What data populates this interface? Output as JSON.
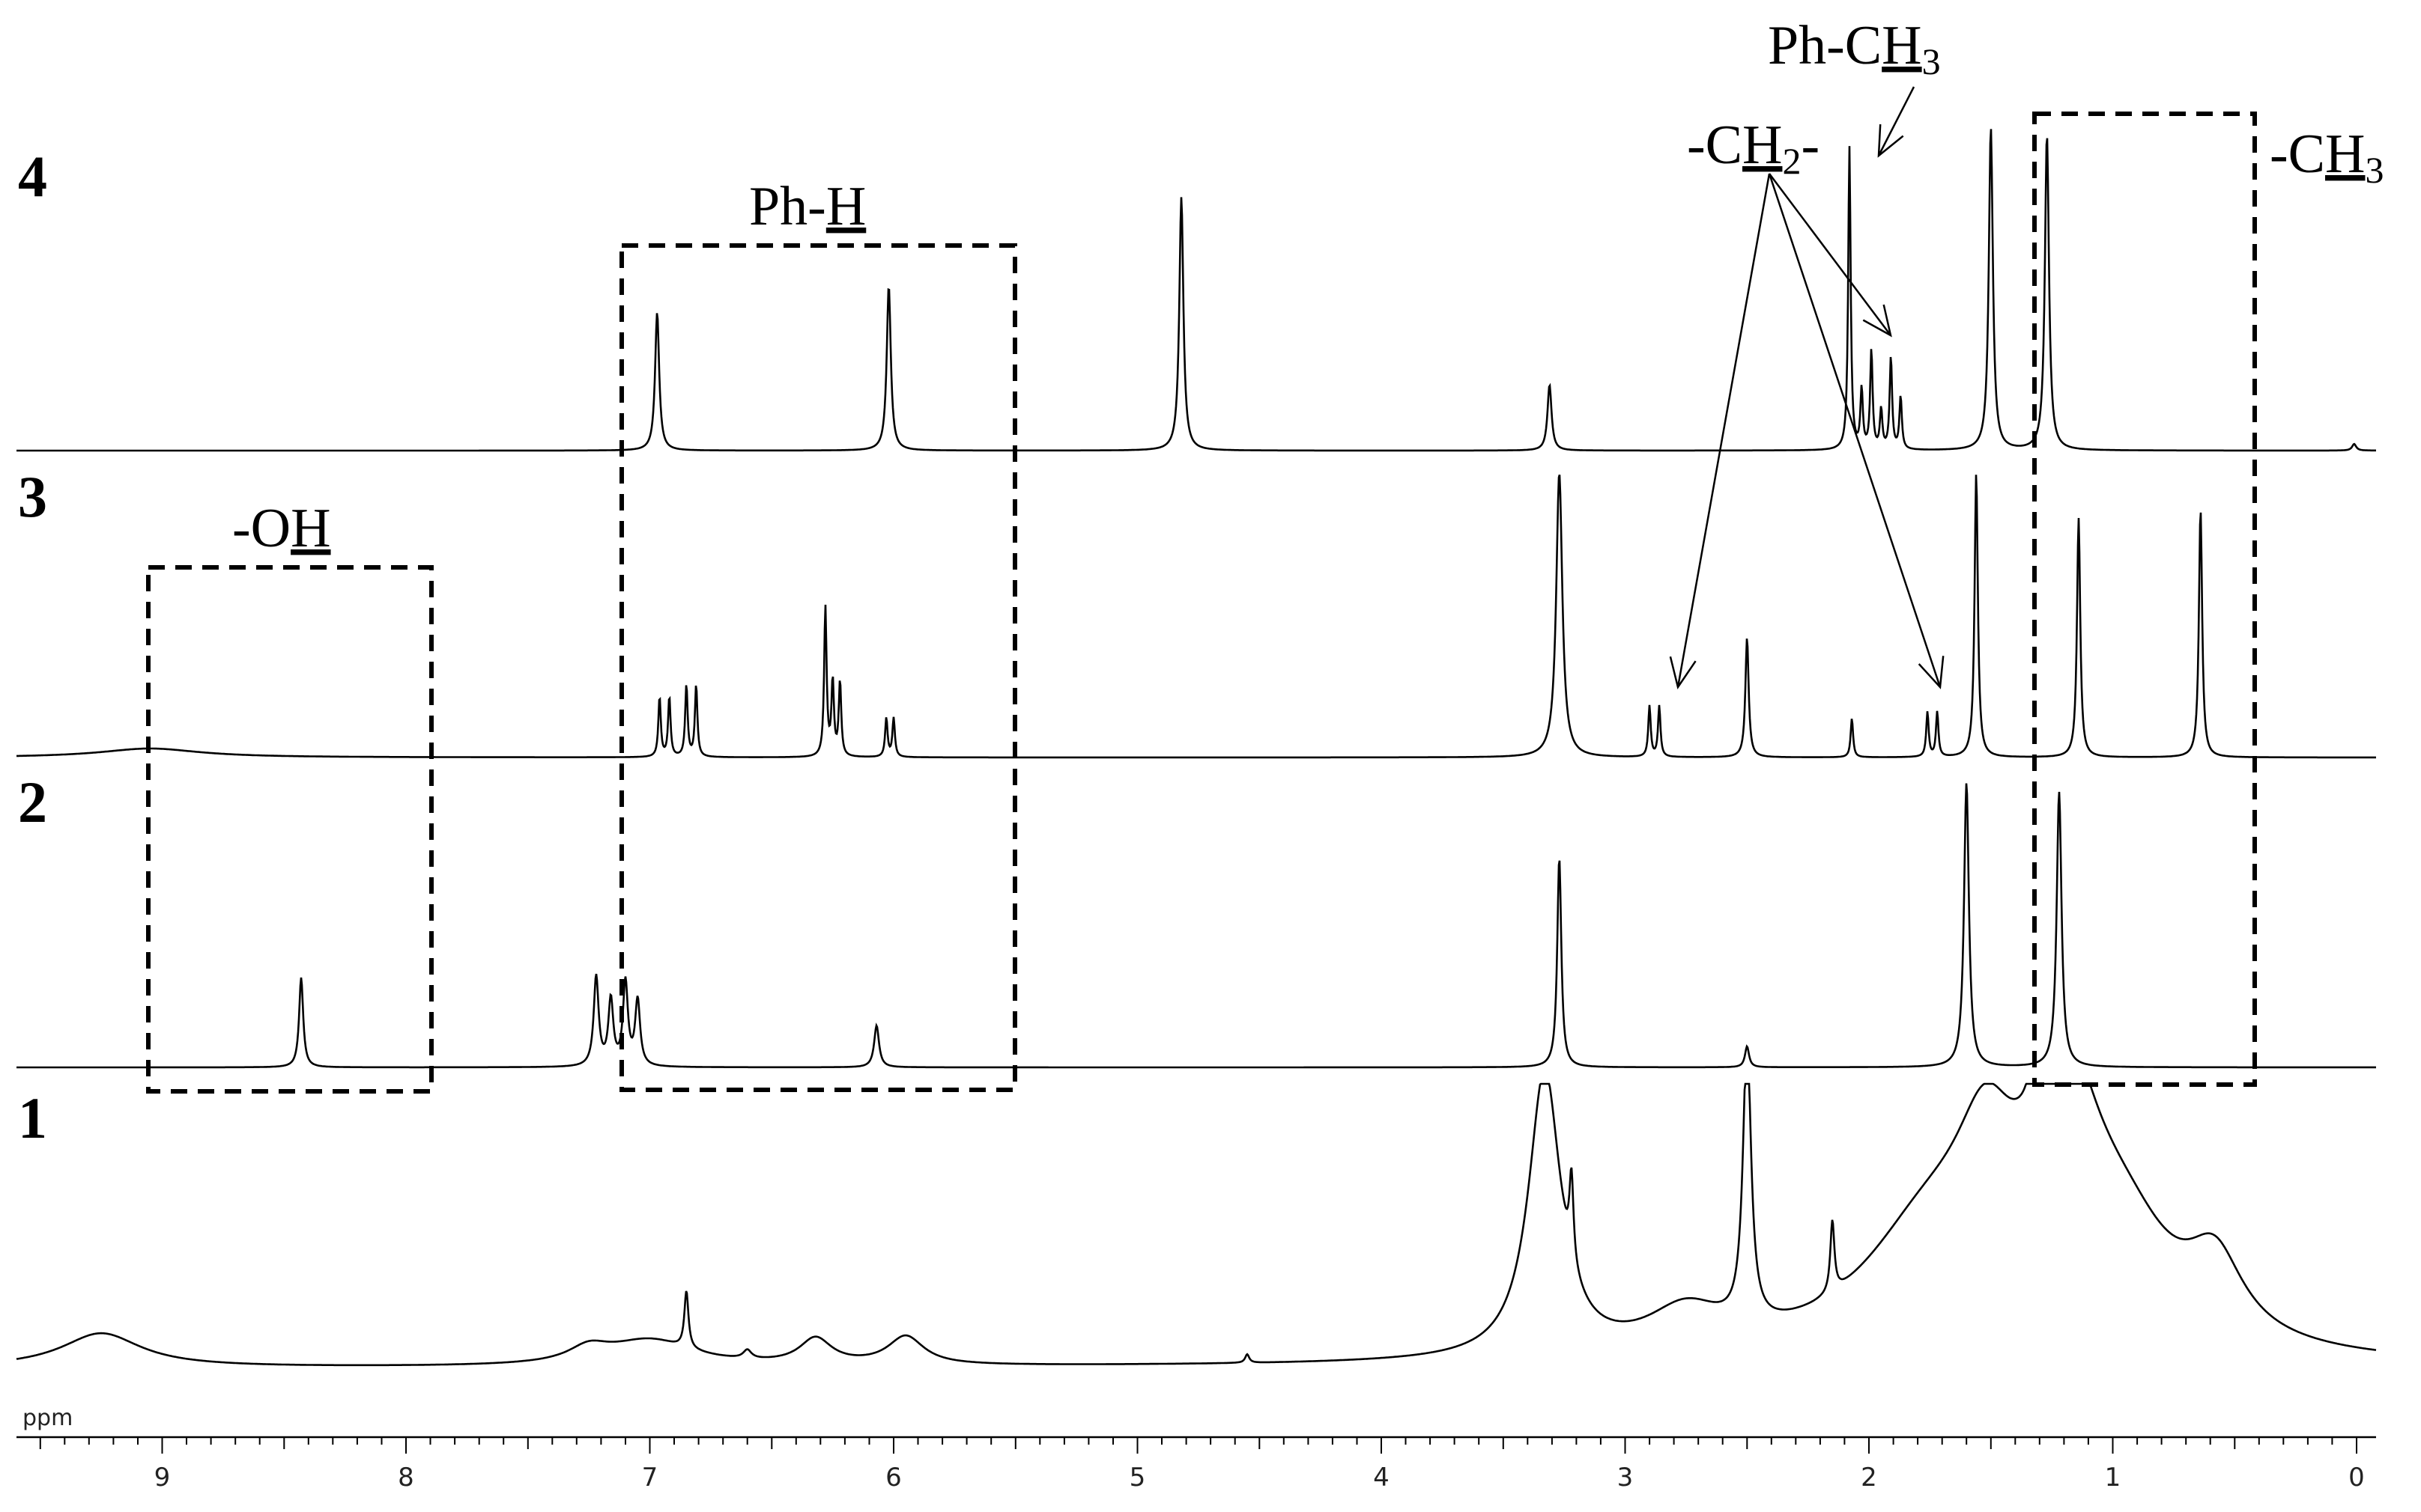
{
  "chart_data": {
    "type": "line",
    "x_unit": "ppm",
    "xlim": [
      9.9,
      0
    ],
    "x_reversed": true,
    "x_ticks": [
      "9",
      "8",
      "7",
      "6",
      "5",
      "4",
      "3",
      "2",
      "1",
      "0"
    ],
    "series": [
      {
        "name": "1",
        "baseline_peaks_note": "",
        "peaks": [
          {
            "x": 9.25,
            "h": 0.12,
            "w": 0.2
          },
          {
            "x": 7.25,
            "h": 0.05,
            "w": 0.1
          },
          {
            "x": 7.0,
            "h": 0.09,
            "w": 0.22
          },
          {
            "x": 6.85,
            "h": 0.2,
            "w": 0.01
          },
          {
            "x": 6.6,
            "h": 0.03,
            "w": 0.02
          },
          {
            "x": 6.32,
            "h": 0.09,
            "w": 0.08
          },
          {
            "x": 5.95,
            "h": 0.1,
            "w": 0.09
          },
          {
            "x": 4.55,
            "h": 0.03,
            "w": 0.01
          },
          {
            "x": 3.33,
            "h": 1.0,
            "w": 0.08
          },
          {
            "x": 3.22,
            "h": 0.3,
            "w": 0.01
          },
          {
            "x": 2.5,
            "h": 1.0,
            "w": 0.02
          },
          {
            "x": 2.75,
            "h": 0.15,
            "w": 0.2
          },
          {
            "x": 2.15,
            "h": 0.25,
            "w": 0.01
          },
          {
            "x": 1.75,
            "h": 0.42,
            "w": 0.35
          },
          {
            "x": 1.52,
            "h": 0.45,
            "w": 0.15
          },
          {
            "x": 1.31,
            "h": 1.0,
            "w": 0.01
          },
          {
            "x": 1.2,
            "h": 0.82,
            "w": 0.18
          },
          {
            "x": 0.95,
            "h": 0.3,
            "w": 0.25
          },
          {
            "x": 0.58,
            "h": 0.26,
            "w": 0.14
          }
        ]
      },
      {
        "name": "2",
        "peaks": [
          {
            "x": 8.43,
            "h": 0.3,
            "w": 0.01
          },
          {
            "x": 7.22,
            "h": 0.3,
            "w": 0.012
          },
          {
            "x": 7.16,
            "h": 0.22,
            "w": 0.012
          },
          {
            "x": 7.1,
            "h": 0.28,
            "w": 0.012
          },
          {
            "x": 7.05,
            "h": 0.22,
            "w": 0.012
          },
          {
            "x": 6.07,
            "h": 0.14,
            "w": 0.012
          },
          {
            "x": 3.27,
            "h": 0.7,
            "w": 0.01
          },
          {
            "x": 2.5,
            "h": 0.07,
            "w": 0.01
          },
          {
            "x": 1.6,
            "h": 0.95,
            "w": 0.012
          },
          {
            "x": 1.22,
            "h": 0.92,
            "w": 0.012
          }
        ]
      },
      {
        "name": "3",
        "peaks": [
          {
            "x": 9.05,
            "h": 0.03,
            "w": 0.25
          },
          {
            "x": 6.96,
            "h": 0.2,
            "w": 0.006
          },
          {
            "x": 6.92,
            "h": 0.2,
            "w": 0.006
          },
          {
            "x": 6.85,
            "h": 0.24,
            "w": 0.006
          },
          {
            "x": 6.81,
            "h": 0.24,
            "w": 0.006
          },
          {
            "x": 6.28,
            "h": 0.5,
            "w": 0.006
          },
          {
            "x": 6.25,
            "h": 0.25,
            "w": 0.006
          },
          {
            "x": 6.22,
            "h": 0.25,
            "w": 0.006
          },
          {
            "x": 6.03,
            "h": 0.13,
            "w": 0.006
          },
          {
            "x": 6.0,
            "h": 0.13,
            "w": 0.006
          },
          {
            "x": 3.27,
            "h": 0.95,
            "w": 0.015
          },
          {
            "x": 2.9,
            "h": 0.17,
            "w": 0.006
          },
          {
            "x": 2.86,
            "h": 0.17,
            "w": 0.006
          },
          {
            "x": 2.5,
            "h": 0.4,
            "w": 0.008
          },
          {
            "x": 2.07,
            "h": 0.13,
            "w": 0.006
          },
          {
            "x": 1.76,
            "h": 0.15,
            "w": 0.006
          },
          {
            "x": 1.72,
            "h": 0.15,
            "w": 0.006
          },
          {
            "x": 1.56,
            "h": 0.95,
            "w": 0.008
          },
          {
            "x": 1.14,
            "h": 0.8,
            "w": 0.008
          },
          {
            "x": 0.64,
            "h": 0.83,
            "w": 0.008
          }
        ]
      },
      {
        "name": "4",
        "peaks": [
          {
            "x": 6.97,
            "h": 0.42,
            "w": 0.01
          },
          {
            "x": 6.02,
            "h": 0.5,
            "w": 0.01
          },
          {
            "x": 4.82,
            "h": 0.77,
            "w": 0.01
          },
          {
            "x": 3.31,
            "h": 0.2,
            "w": 0.01
          },
          {
            "x": 2.08,
            "h": 0.92,
            "w": 0.006
          },
          {
            "x": 2.03,
            "h": 0.18,
            "w": 0.006
          },
          {
            "x": 1.99,
            "h": 0.3,
            "w": 0.006
          },
          {
            "x": 1.95,
            "h": 0.12,
            "w": 0.006
          },
          {
            "x": 1.91,
            "h": 0.28,
            "w": 0.006
          },
          {
            "x": 1.87,
            "h": 0.16,
            "w": 0.006
          },
          {
            "x": 1.5,
            "h": 0.98,
            "w": 0.01
          },
          {
            "x": 1.27,
            "h": 0.96,
            "w": 0.01
          },
          {
            "x": 0.01,
            "h": 0.02,
            "w": 0.01
          }
        ]
      }
    ],
    "annotations": [
      {
        "name": "oh",
        "label_prefix": "-O",
        "label_underlined": "H",
        "label_sub": "",
        "label_suffix": ""
      },
      {
        "name": "ph-h",
        "label_prefix": "Ph-",
        "label_underlined": "H",
        "label_sub": "",
        "label_suffix": ""
      },
      {
        "name": "ph-ch3",
        "label_prefix": "Ph-C",
        "label_underlined": "H",
        "label_sub": "3",
        "label_suffix": ""
      },
      {
        "name": "ch2",
        "label_prefix": "-C",
        "label_underlined": "H",
        "label_sub": "2",
        "label_suffix": "-"
      },
      {
        "name": "ch3",
        "label_prefix": "-C",
        "label_underlined": "H",
        "label_sub": "3",
        "label_suffix": ""
      }
    ]
  }
}
